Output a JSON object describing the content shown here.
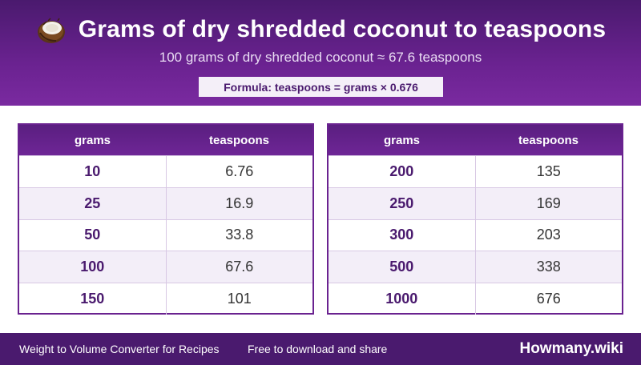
{
  "header": {
    "title": "Grams of dry shredded coconut to teaspoons",
    "subtitle": "100 grams of dry shredded coconut ≈ 67.6 teaspoons",
    "formula": "Formula: teaspoons = grams × 0.676",
    "icon": "coconut-icon"
  },
  "tables": [
    {
      "headers": [
        "grams",
        "teaspoons"
      ],
      "rows": [
        {
          "grams": "10",
          "teaspoons": "6.76"
        },
        {
          "grams": "25",
          "teaspoons": "16.9"
        },
        {
          "grams": "50",
          "teaspoons": "33.8"
        },
        {
          "grams": "100",
          "teaspoons": "67.6"
        },
        {
          "grams": "150",
          "teaspoons": "101"
        }
      ]
    },
    {
      "headers": [
        "grams",
        "teaspoons"
      ],
      "rows": [
        {
          "grams": "200",
          "teaspoons": "135"
        },
        {
          "grams": "250",
          "teaspoons": "169"
        },
        {
          "grams": "300",
          "teaspoons": "203"
        },
        {
          "grams": "500",
          "teaspoons": "338"
        },
        {
          "grams": "1000",
          "teaspoons": "676"
        }
      ]
    }
  ],
  "footer": {
    "left": "Weight to Volume Converter for Recipes",
    "middle": "Free to download and share",
    "brand": "Howmany.wiki"
  },
  "colors": {
    "primary": "#6a2290",
    "dark": "#4a1a6e",
    "row_alt": "#f3eef8"
  }
}
